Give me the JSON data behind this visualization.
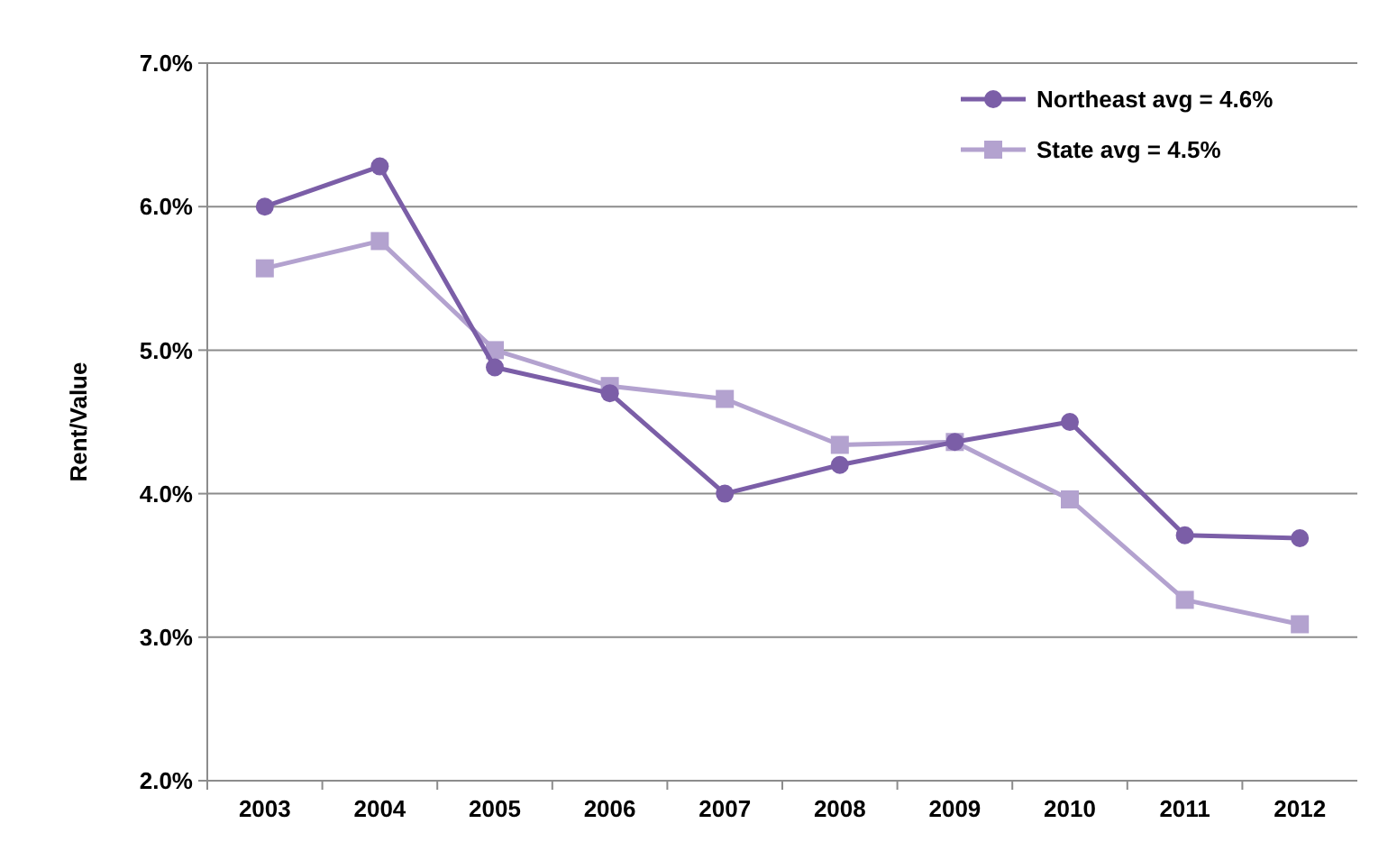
{
  "chart_data": {
    "type": "line",
    "ylabel": "Rent/Value",
    "categories": [
      "2003",
      "2004",
      "2005",
      "2006",
      "2007",
      "2008",
      "2009",
      "2010",
      "2011",
      "2012"
    ],
    "series": [
      {
        "name": "Northeast avg = 4.6%",
        "color": "#7b5ea7",
        "marker": "circle",
        "values": [
          6.0,
          6.28,
          4.88,
          4.7,
          4.0,
          4.2,
          4.36,
          4.5,
          3.71,
          3.69
        ]
      },
      {
        "name": "State avg = 4.5%",
        "color": "#b3a2cf",
        "marker": "square",
        "values": [
          5.57,
          5.76,
          5.0,
          4.75,
          4.66,
          4.34,
          4.36,
          3.96,
          3.26,
          3.09
        ]
      }
    ],
    "ylim": [
      2,
      7
    ],
    "yticks": [
      {
        "value": 2,
        "label": "2.0%"
      },
      {
        "value": 3,
        "label": "3.0%"
      },
      {
        "value": 4,
        "label": "4.0%"
      },
      {
        "value": 5,
        "label": "5.0%"
      },
      {
        "value": 6,
        "label": "6.0%"
      },
      {
        "value": 7,
        "label": "7.0%"
      }
    ],
    "grid": "y",
    "legend": "top right",
    "line_style": "solid"
  }
}
